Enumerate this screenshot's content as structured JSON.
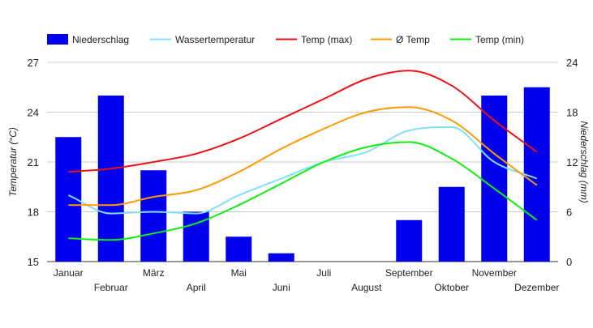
{
  "chart_data": {
    "type": "bar",
    "categories": [
      "Januar",
      "Februar",
      "März",
      "April",
      "Mai",
      "Juni",
      "Juli",
      "August",
      "September",
      "Oktober",
      "November",
      "Dezember"
    ],
    "left_axis": {
      "label": "Temperatur (°C)",
      "ylim": [
        15,
        27
      ],
      "ticks": [
        15,
        18,
        21,
        24,
        27
      ]
    },
    "right_axis": {
      "label": "Niederschlag (mm)",
      "ylim": [
        0,
        24
      ],
      "ticks": [
        0,
        6,
        12,
        18,
        24
      ]
    },
    "grid": true,
    "legend_position": "top",
    "series": [
      {
        "name": "Niederschlag",
        "type": "bar",
        "axis": "right",
        "color": "#0000ee",
        "values": [
          15,
          20,
          11,
          6,
          3,
          1,
          0,
          0,
          5,
          9,
          20,
          21
        ]
      },
      {
        "name": "Wassertemperatur",
        "type": "line",
        "axis": "left",
        "color": "#80dfff",
        "values": [
          19.0,
          17.9,
          18.0,
          17.9,
          19.0,
          20.0,
          21.0,
          21.6,
          22.9,
          23.1,
          21.0,
          20.0
        ]
      },
      {
        "name": "Temp (max)",
        "type": "line",
        "axis": "left",
        "color": "#ee1111",
        "values": [
          20.4,
          20.6,
          21.0,
          21.5,
          22.4,
          23.6,
          24.8,
          26.0,
          26.5,
          25.6,
          23.5,
          21.6
        ]
      },
      {
        "name": "Ø Temp",
        "type": "line",
        "axis": "left",
        "color": "#ff9900",
        "values": [
          18.4,
          18.4,
          18.9,
          19.3,
          20.4,
          21.8,
          23.0,
          24.0,
          24.3,
          23.5,
          21.5,
          19.6
        ]
      },
      {
        "name": "Temp (min)",
        "type": "line",
        "axis": "left",
        "color": "#11ee11",
        "values": [
          16.4,
          16.3,
          16.7,
          17.3,
          18.4,
          19.7,
          21.0,
          21.9,
          22.2,
          21.2,
          19.4,
          17.5
        ]
      }
    ]
  }
}
